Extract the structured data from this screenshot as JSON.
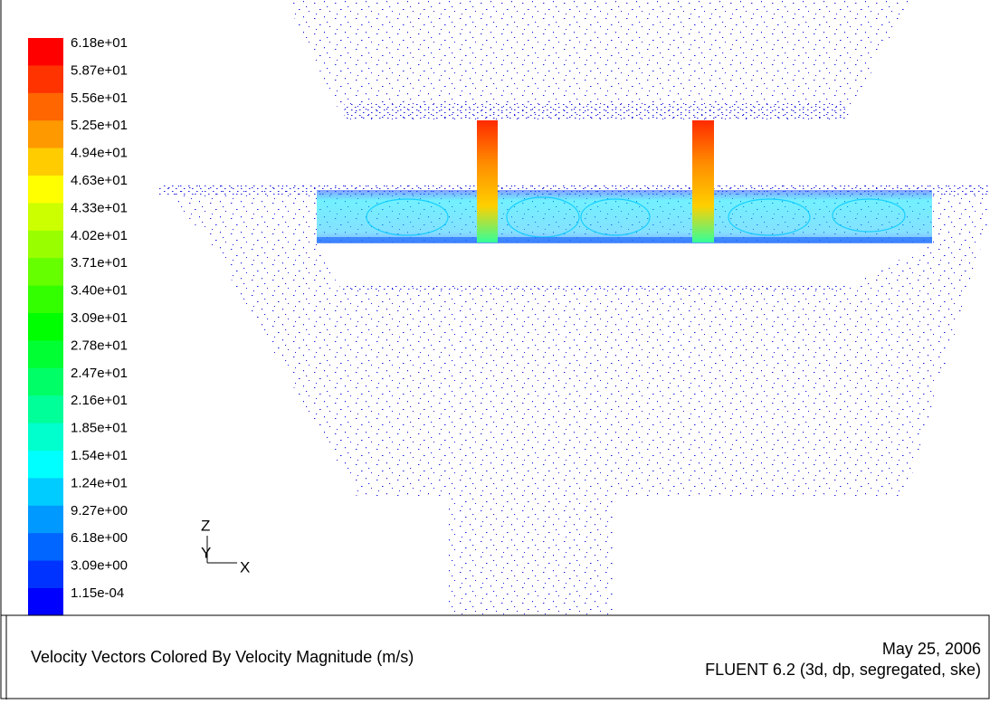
{
  "legend": {
    "labels": [
      "6.18e+01",
      "5.87e+01",
      "5.56e+01",
      "5.25e+01",
      "4.94e+01",
      "4.63e+01",
      "4.33e+01",
      "4.02e+01",
      "3.71e+01",
      "3.40e+01",
      "3.09e+01",
      "2.78e+01",
      "2.47e+01",
      "2.16e+01",
      "1.85e+01",
      "1.54e+01",
      "1.24e+01",
      "9.27e+00",
      "6.18e+00",
      "3.09e+00",
      "1.15e-04"
    ]
  },
  "axes": {
    "z": "Z",
    "y": "Y",
    "x": "X"
  },
  "footer": {
    "title": "Velocity Vectors Colored By Velocity Magnitude (m/s)",
    "date": "May 25, 2006",
    "solver": "FLUENT 6.2 (3d, dp, segregated, ske)"
  }
}
